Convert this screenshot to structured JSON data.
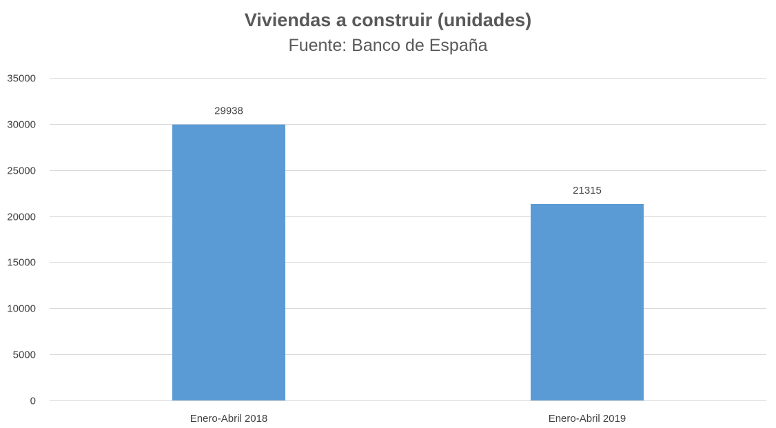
{
  "chart_data": {
    "type": "bar",
    "title": "Viviendas a construir (unidades)",
    "subtitle": "Fuente: Banco de España",
    "categories": [
      "Enero-Abril 2018",
      "Enero-Abril 2019"
    ],
    "values": [
      29938,
      21315
    ],
    "data_labels": [
      "29938",
      "21315"
    ],
    "xlabel": "",
    "ylabel": "",
    "ylim": [
      0,
      35000
    ],
    "yticks": [
      0,
      5000,
      10000,
      15000,
      20000,
      25000,
      30000,
      35000
    ],
    "ytick_labels": [
      "0",
      "5000",
      "10000",
      "15000",
      "20000",
      "25000",
      "30000",
      "35000"
    ],
    "grid": true,
    "legend": "none",
    "colors": {
      "bar": "#5b9bd5",
      "grid": "#d9d9d9",
      "text": "#595959"
    }
  }
}
